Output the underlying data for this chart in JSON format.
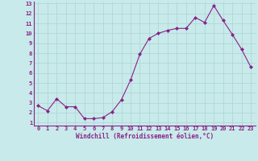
{
  "x": [
    0,
    1,
    2,
    3,
    4,
    5,
    6,
    7,
    8,
    9,
    10,
    11,
    12,
    13,
    14,
    15,
    16,
    17,
    18,
    19,
    20,
    21,
    22,
    23
  ],
  "y": [
    2.7,
    2.2,
    3.4,
    2.6,
    2.6,
    1.4,
    1.4,
    1.5,
    2.1,
    3.3,
    5.3,
    7.9,
    9.5,
    10.0,
    10.3,
    10.5,
    10.5,
    11.6,
    11.1,
    12.8,
    11.3,
    9.9,
    8.4,
    6.6
  ],
  "line_color": "#882288",
  "marker": "D",
  "marker_size": 2.0,
  "bg_color": "#c8eaea",
  "grid_color": "#b0d8d8",
  "xlabel": "Windchill (Refroidissement éolien,°C)",
  "xlabel_color": "#882288",
  "tick_color": "#882288",
  "border_color": "#882288",
  "ylim": [
    1,
    13
  ],
  "xlim": [
    0,
    23
  ],
  "yticks": [
    1,
    2,
    3,
    4,
    5,
    6,
    7,
    8,
    9,
    10,
    11,
    12,
    13
  ],
  "xticks": [
    0,
    1,
    2,
    3,
    4,
    5,
    6,
    7,
    8,
    9,
    10,
    11,
    12,
    13,
    14,
    15,
    16,
    17,
    18,
    19,
    20,
    21,
    22,
    23
  ],
  "tick_fontsize": 5.0,
  "xlabel_fontsize": 5.5
}
